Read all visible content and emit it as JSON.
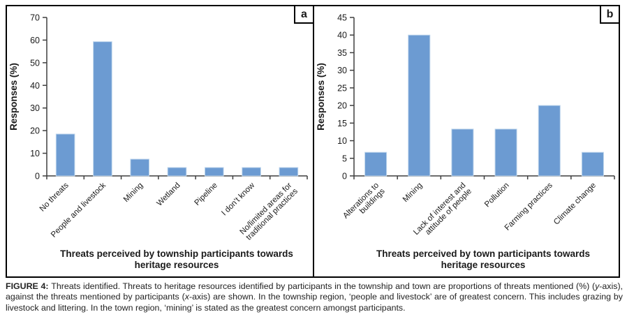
{
  "figure": {
    "caption": {
      "segments": [
        {
          "text": "FIGURE 4: ",
          "bold": true
        },
        {
          "text": "Threats identified. Threats to heritage resources identified by participants in the township and town are proportions of threats mentioned (%) ("
        },
        {
          "text": "y",
          "italic": true
        },
        {
          "text": "-axis), against the threats mentioned by participants ("
        },
        {
          "text": "x",
          "italic": true
        },
        {
          "text": "-axis) are shown. In the township region, ‘people and livestock’ are of greatest concern. This includes grazing by livestock and littering. In the town region, ‘mining’ is stated as the greatest concern amongst participants."
        }
      ]
    }
  },
  "chart_data": [
    {
      "panel_label": "a",
      "type": "bar",
      "categories": [
        "No threats",
        "People and livestock",
        "Mining",
        "Wetland",
        "Pipeline",
        "I don’t know",
        "No/limited areas for traditional practices"
      ],
      "category_lines": [
        [
          "No threats"
        ],
        [
          "People and livestock"
        ],
        [
          "Mining"
        ],
        [
          "Wetland"
        ],
        [
          "Pipeline"
        ],
        [
          "I don’t know"
        ],
        [
          "No/limited areas for",
          "traditional practices"
        ]
      ],
      "values": [
        18.5,
        59.3,
        7.4,
        3.7,
        3.7,
        3.7,
        3.7
      ],
      "ylabel": "Responses (%)",
      "xlabel": "Threats perceived by township participants towards heritage resources",
      "xlabel_lines": [
        "Threats perceived by township participants towards",
        "heritage resources"
      ],
      "ylim": [
        0,
        70
      ],
      "ytick_step": 10,
      "bar_color": "#6C9BD2",
      "bar_edge_color": "#BFD6EC",
      "axis_color": "#3F3F3F",
      "grid": false,
      "legend": false
    },
    {
      "panel_label": "b",
      "type": "bar",
      "categories": [
        "Alterations to buildings",
        "Mining",
        "Lack of interest and attitude of people",
        "Pollution",
        "Farming practices",
        "Climate change"
      ],
      "category_lines": [
        [
          "Alterations to",
          "buildings"
        ],
        [
          "Mining"
        ],
        [
          "Lack of interest and",
          "attitude of people"
        ],
        [
          "Pollution"
        ],
        [
          "Farming practices"
        ],
        [
          "Climate change"
        ]
      ],
      "values": [
        6.7,
        40,
        13.3,
        13.3,
        20,
        6.7
      ],
      "ylabel": "Responses (%)",
      "xlabel": "Threats perceived by town participants towards heritage resources",
      "xlabel_lines": [
        "Threats perceived by town participants towards",
        "heritage resources"
      ],
      "ylim": [
        0,
        45
      ],
      "ytick_step": 5,
      "bar_color": "#6C9BD2",
      "bar_edge_color": "#BFD6EC",
      "axis_color": "#3F3F3F",
      "grid": false,
      "legend": false
    }
  ]
}
